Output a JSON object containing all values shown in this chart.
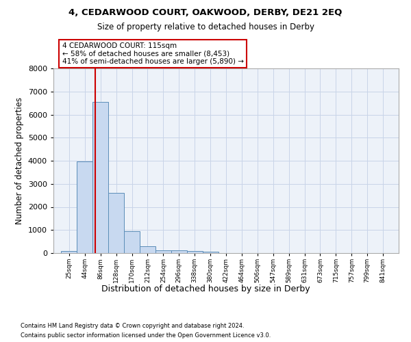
{
  "title": "4, CEDARWOOD COURT, OAKWOOD, DERBY, DE21 2EQ",
  "subtitle": "Size of property relative to detached houses in Derby",
  "xlabel": "Distribution of detached houses by size in Derby",
  "ylabel": "Number of detached properties",
  "bin_edges": [
    25,
    67,
    109,
    151,
    193,
    235,
    277,
    319,
    361,
    403,
    445,
    487,
    529,
    571,
    613,
    655,
    697,
    739,
    781,
    823,
    865
  ],
  "bin_labels": [
    "25sqm",
    "44sqm",
    "86sqm",
    "128sqm",
    "170sqm",
    "212sqm",
    "254sqm",
    "296sqm",
    "338sqm",
    "380sqm",
    "422sqm",
    "464sqm",
    "506sqm",
    "547sqm",
    "589sqm",
    "631sqm",
    "673sqm",
    "715sqm",
    "757sqm",
    "799sqm",
    "841sqm"
  ],
  "counts": [
    75,
    3980,
    6550,
    2600,
    960,
    310,
    120,
    110,
    85,
    70,
    0,
    0,
    0,
    0,
    0,
    0,
    0,
    0,
    0,
    0
  ],
  "bar_facecolor": "#c8d9f0",
  "bar_edgecolor": "#5b8db8",
  "property_size": 115,
  "vline_color": "#cc0000",
  "annotation_line1": "4 CEDARWOOD COURT: 115sqm",
  "annotation_line2": "← 58% of detached houses are smaller (8,453)",
  "annotation_line3": "41% of semi-detached houses are larger (5,890) →",
  "annotation_box_edgecolor": "#cc0000",
  "ylim": [
    0,
    8000
  ],
  "yticks": [
    0,
    1000,
    2000,
    3000,
    4000,
    5000,
    6000,
    7000,
    8000
  ],
  "grid_color": "#c8d4e8",
  "background_color": "#edf2f9",
  "footnote1": "Contains HM Land Registry data © Crown copyright and database right 2024.",
  "footnote2": "Contains public sector information licensed under the Open Government Licence v3.0."
}
